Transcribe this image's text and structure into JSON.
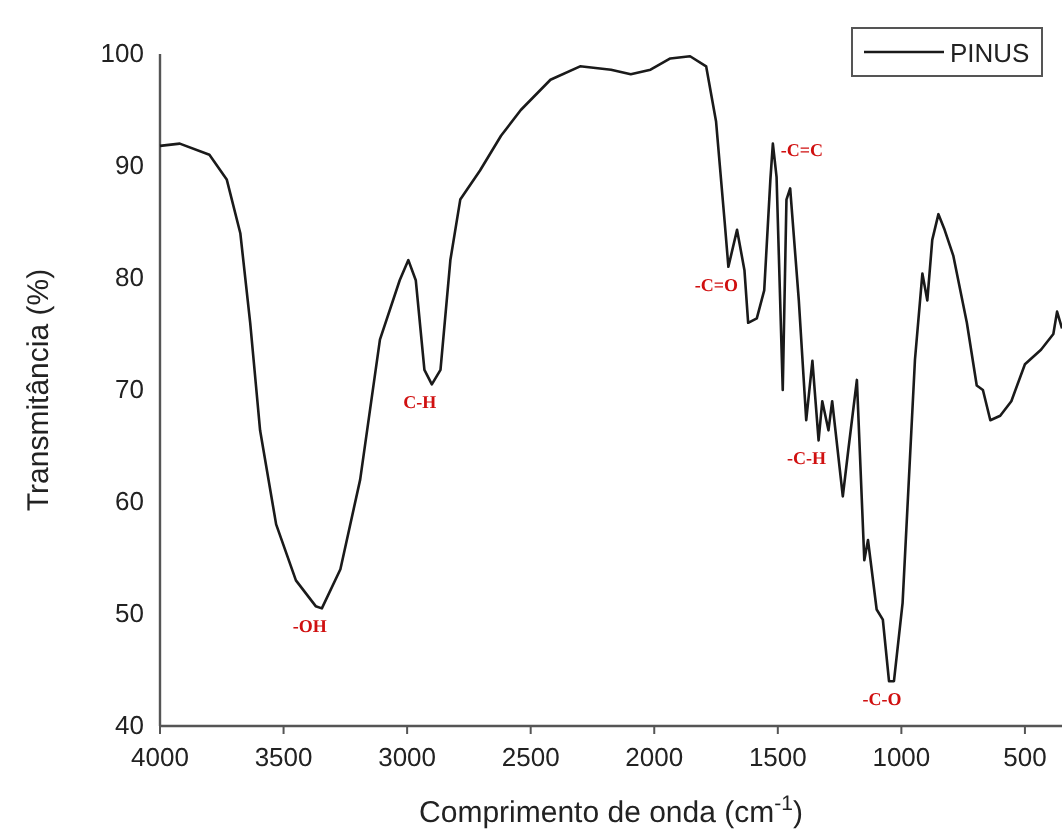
{
  "chart_data": {
    "type": "line",
    "xlabel": "Comprimento de onda (cm$^{-1}$)",
    "ylabel": "Transmitância (%)",
    "xlim": [
      4000,
      350
    ],
    "xticks": [
      4000,
      3500,
      3000,
      2500,
      2000,
      1500,
      1000,
      500
    ],
    "ylim": [
      40,
      100
    ],
    "yticks": [
      40,
      50,
      60,
      70,
      80,
      90,
      100
    ],
    "grid": false,
    "legend": "top right",
    "marker": "none",
    "line_style": "solid",
    "series": [
      {
        "name": "PINUS",
        "color": "#1a1a1a",
        "x": [
          4000,
          3920,
          3800,
          3730,
          3675,
          3635,
          3595,
          3530,
          3450,
          3370,
          3345,
          3270,
          3190,
          3110,
          3030,
          2995,
          2965,
          2930,
          2900,
          2865,
          2825,
          2785,
          2705,
          2620,
          2540,
          2420,
          2300,
          2175,
          2095,
          2015,
          1935,
          1855,
          1790,
          1750,
          1715,
          1700,
          1665,
          1635,
          1620,
          1585,
          1555,
          1530,
          1520,
          1505,
          1480,
          1465,
          1450,
          1415,
          1385,
          1360,
          1335,
          1320,
          1295,
          1280,
          1237,
          1215,
          1180,
          1150,
          1135,
          1100,
          1075,
          1050,
          1030,
          995,
          945,
          915,
          895,
          875,
          850,
          825,
          790,
          735,
          695,
          670,
          640,
          600,
          555,
          500,
          435,
          385,
          370,
          350
        ],
        "values": [
          91.8,
          92,
          91,
          88.8,
          84,
          76,
          66.4,
          58,
          53,
          50.7,
          50.5,
          54,
          62,
          74.5,
          79.8,
          81.6,
          79.8,
          71.8,
          70.5,
          71.8,
          81.6,
          87,
          89.6,
          92.7,
          95,
          97.7,
          98.9,
          98.6,
          98.2,
          98.6,
          99.6,
          99.8,
          98.9,
          94,
          85,
          81,
          84.3,
          80.7,
          76,
          76.4,
          78.9,
          88.8,
          92,
          89,
          70,
          87,
          88,
          78,
          67.3,
          72.6,
          65.5,
          69,
          66.4,
          69,
          60.5,
          64.6,
          70.9,
          54.8,
          56.6,
          50.4,
          49.5,
          44,
          44,
          51,
          72.7,
          80.4,
          78,
          83.4,
          85.7,
          84.3,
          82,
          76,
          70.4,
          70,
          67.3,
          67.7,
          69,
          72.3,
          73.6,
          75,
          77,
          75.5
        ]
      }
    ],
    "annotations": [
      {
        "text": "-OH",
        "x": 3345,
        "y": 50.5
      },
      {
        "text": "C-H",
        "x": 2900,
        "y": 70.5
      },
      {
        "text": "-C=O",
        "x": 1700,
        "y": 81
      },
      {
        "text": "-C=C",
        "x": 1520,
        "y": 92
      },
      {
        "text": "-C-H",
        "x": 1335,
        "y": 65.5
      },
      {
        "text": "-C-O",
        "x": 1030,
        "y": 44
      }
    ]
  }
}
